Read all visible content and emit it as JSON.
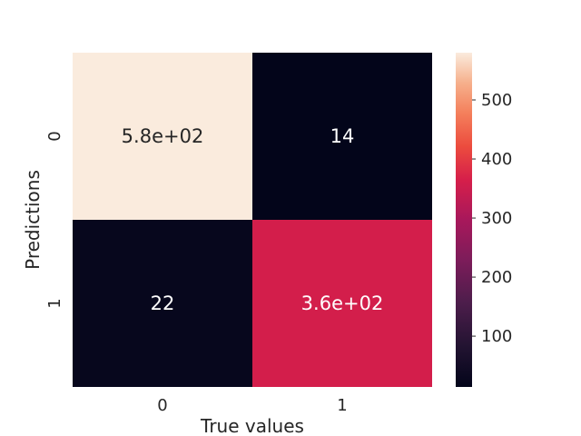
{
  "chart_data": {
    "type": "heatmap",
    "title": "",
    "xlabel": "True values",
    "ylabel": "Predictions",
    "x_categories": [
      "0",
      "1"
    ],
    "y_categories": [
      "0",
      "1"
    ],
    "values": [
      [
        580,
        14
      ],
      [
        22,
        360
      ]
    ],
    "annotations": [
      [
        "5.8e+02",
        "14"
      ],
      [
        "22",
        "3.6e+02"
      ]
    ],
    "colormap": "rocket",
    "colorbar": {
      "vmin": 14,
      "vmax": 580,
      "ticks": [
        100,
        200,
        300,
        400,
        500
      ],
      "tick_labels": [
        "100",
        "200",
        "300",
        "400",
        "500"
      ]
    },
    "grid": false
  }
}
